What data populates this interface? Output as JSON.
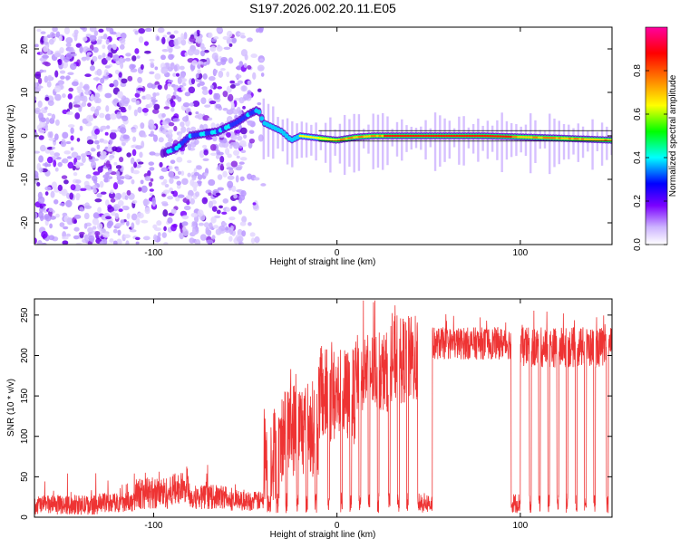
{
  "title": "S197.2026.002.20.11.E05",
  "chart_data": [
    {
      "type": "heatmap",
      "name": "spectrogram",
      "xlabel": "Height of straight line (km)",
      "ylabel": "Frequency (Hz)",
      "xlim": [
        -165,
        150
      ],
      "ylim": [
        -25,
        25
      ],
      "xticks": [
        -100,
        0,
        100
      ],
      "xtick_labels": [
        "-100",
        "0",
        "100"
      ],
      "yticks": [
        -20,
        -10,
        0,
        10,
        20
      ],
      "ytick_labels": [
        "-20",
        "-10",
        "0",
        "10",
        "20"
      ],
      "colorbar": {
        "label": "Normalized spectral amplitude",
        "range": [
          0,
          1
        ],
        "ticks": [
          0.0,
          0.2,
          0.4,
          0.6,
          0.8
        ],
        "tick_labels": [
          "0.0",
          "0.2",
          "0.4",
          "0.6",
          "0.8"
        ],
        "colors": [
          "#ffffff",
          "#cdb4ff",
          "#7a00ff",
          "#0000ff",
          "#00ffff",
          "#00ff00",
          "#ffff00",
          "#ff8000",
          "#ff0000",
          "#ff00a0"
        ]
      },
      "noise_regions_km": [
        [
          -165,
          -115,
          0.85
        ],
        [
          -115,
          -95,
          0.55
        ],
        [
          -95,
          -50,
          0.8
        ],
        [
          -50,
          -40,
          0.3
        ]
      ],
      "trace_km": [
        [
          -95,
          -4
        ],
        [
          -88,
          -3
        ],
        [
          -80,
          0
        ],
        [
          -65,
          1
        ],
        [
          -55,
          3
        ],
        [
          -48,
          5
        ],
        [
          -43,
          6
        ],
        [
          -40,
          3
        ],
        [
          -35,
          2
        ],
        [
          -30,
          1
        ],
        [
          -25,
          -1
        ],
        [
          -20,
          0
        ],
        [
          -10,
          -0.5
        ],
        [
          0,
          -1
        ],
        [
          10,
          -0.3
        ],
        [
          20,
          0
        ],
        [
          40,
          0
        ],
        [
          80,
          0
        ],
        [
          120,
          -0.5
        ],
        [
          150,
          -1
        ]
      ],
      "line_segment_km": [
        -10,
        150
      ]
    },
    {
      "type": "line",
      "name": "snr",
      "xlabel": "Height of straight line (km)",
      "ylabel": "SNR (10 * v/v)",
      "xlim": [
        -165,
        150
      ],
      "ylim": [
        0,
        270
      ],
      "xticks": [
        -100,
        0,
        100
      ],
      "xtick_labels": [
        "-100",
        "0",
        "100"
      ],
      "yticks": [
        0,
        50,
        100,
        150,
        200,
        250
      ],
      "ytick_labels": [
        "0",
        "50",
        "100",
        "150",
        "200",
        "250"
      ],
      "color": "#ee3333",
      "series_profile": {
        "segments_km": [
          [
            -165,
            -130,
            15,
            12
          ],
          [
            -130,
            -110,
            18,
            12
          ],
          [
            -110,
            -90,
            30,
            20
          ],
          [
            -90,
            -80,
            35,
            20
          ],
          [
            -80,
            -60,
            25,
            15
          ],
          [
            -60,
            -40,
            20,
            12
          ],
          [
            -40,
            -30,
            80,
            60
          ],
          [
            -30,
            -10,
            110,
            60
          ],
          [
            -10,
            10,
            150,
            60
          ],
          [
            10,
            30,
            180,
            50
          ],
          [
            30,
            50,
            195,
            55
          ],
          [
            50,
            100,
            215,
            20
          ],
          [
            100,
            150,
            210,
            25
          ]
        ],
        "dips_km": [
          [
            -38,
            -36
          ],
          [
            -33,
            -32
          ],
          [
            -28,
            -27
          ],
          [
            -22,
            -21
          ],
          [
            -17,
            -16
          ],
          [
            -12,
            -11
          ],
          [
            -5,
            -4
          ],
          [
            2,
            3
          ],
          [
            7,
            8
          ],
          [
            12,
            13
          ],
          [
            17,
            18
          ],
          [
            22,
            23
          ],
          [
            28,
            29
          ],
          [
            33,
            34
          ],
          [
            38,
            39
          ],
          [
            44,
            52
          ],
          [
            95,
            100
          ],
          [
            105,
            106
          ],
          [
            110,
            111
          ],
          [
            115,
            116
          ],
          [
            120,
            121
          ],
          [
            125,
            126
          ],
          [
            130,
            131
          ],
          [
            135,
            136
          ],
          [
            140,
            141
          ],
          [
            147,
            148
          ]
        ]
      }
    }
  ]
}
